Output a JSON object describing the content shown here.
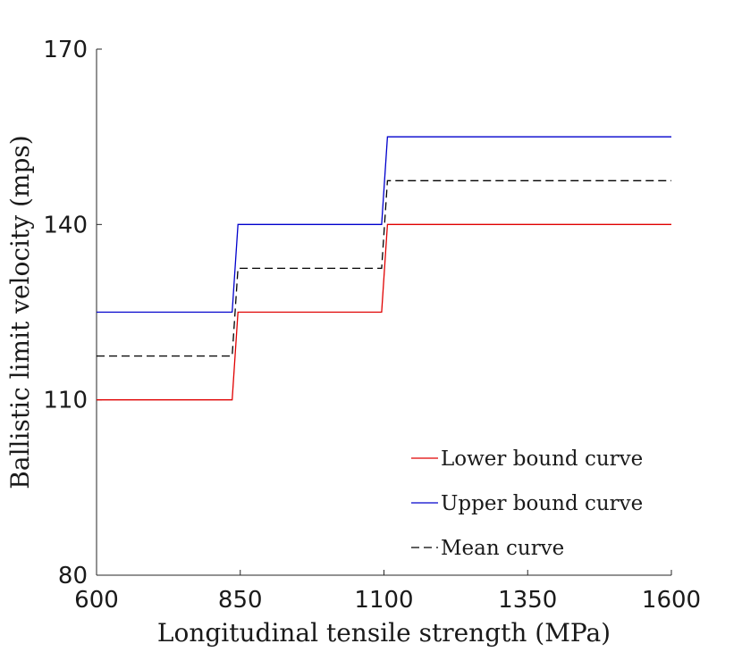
{
  "chart_data": {
    "type": "line",
    "title": "",
    "xlabel": "Longitudinal tensile strength (MPa)",
    "ylabel": "Ballistic limit velocity (mps)",
    "xlim": [
      600,
      1600
    ],
    "ylim": [
      80,
      170
    ],
    "xticks": [
      600,
      850,
      1100,
      1350,
      1600
    ],
    "yticks": [
      80,
      110,
      140,
      170
    ],
    "xtick_labels": [
      "600",
      "850",
      "1100",
      "1350",
      "1600"
    ],
    "ytick_labels": [
      "80",
      "110",
      "140",
      "170"
    ],
    "grid": false,
    "legend_position": "bottom-right",
    "series": [
      {
        "name": "Lower bound curve",
        "color": "#e00000",
        "style": "solid",
        "x": [
          600,
          836,
          846,
          1096,
          1106,
          1600
        ],
        "y": [
          110,
          110,
          125,
          125,
          140,
          140
        ]
      },
      {
        "name": "Upper bound curve",
        "color": "#0000cc",
        "style": "solid",
        "x": [
          600,
          836,
          846,
          1096,
          1106,
          1600
        ],
        "y": [
          125,
          125,
          140,
          140,
          155,
          155
        ]
      },
      {
        "name": "Mean curve",
        "color": "#000000",
        "style": "dashed",
        "x": [
          600,
          836,
          846,
          1096,
          1106,
          1600
        ],
        "y": [
          117.5,
          117.5,
          132.5,
          132.5,
          147.5,
          147.5
        ]
      }
    ]
  }
}
